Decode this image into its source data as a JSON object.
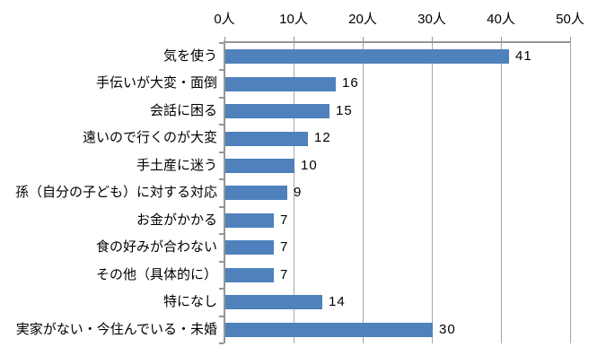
{
  "chart_data": {
    "type": "bar",
    "orientation": "horizontal",
    "title": "",
    "categories": [
      "気を使う",
      "手伝いが大変・面倒",
      "会話に困る",
      "遠いので行くのが大変",
      "手土産に迷う",
      "孫（自分の子ども）に対する対応",
      "お金がかかる",
      "食の好みが合わない",
      "その他（具体的に）",
      "特になし",
      "実家がない・今住んでいる・未婚"
    ],
    "values": [
      41,
      16,
      15,
      12,
      10,
      9,
      7,
      7,
      7,
      14,
      30
    ],
    "data_labels": [
      "41",
      "16",
      "15",
      "12",
      "10",
      "9",
      "7",
      "7",
      "7",
      "14",
      "30"
    ],
    "value_axis": {
      "position": "top",
      "tick_labels": [
        "0人",
        "10人",
        "20人",
        "30人",
        "40人",
        "50人"
      ],
      "tick_values": [
        0,
        10,
        20,
        30,
        40,
        50
      ],
      "min": 0,
      "max": 50,
      "gridlines": true
    },
    "legend": null,
    "colors": {
      "bar": "#4F81BD",
      "axis_line": "#969696",
      "gridline": "#A6A6A6",
      "text": "#000000",
      "background": "#FFFFFF"
    }
  }
}
